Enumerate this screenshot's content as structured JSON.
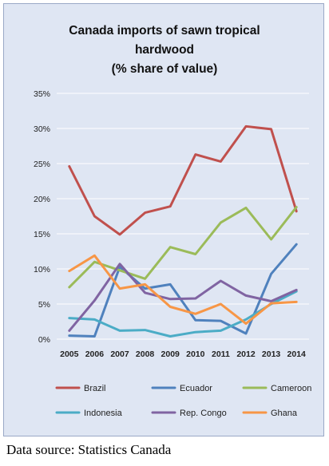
{
  "chart_data": {
    "type": "line",
    "title_lines": [
      "Canada imports of sawn tropical",
      "hardwood",
      "(% share of value)"
    ],
    "x": [
      "2005",
      "2006",
      "2007",
      "2008",
      "2009",
      "2010",
      "2011",
      "2012",
      "2013",
      "2014"
    ],
    "ylim": [
      0,
      35
    ],
    "yticks": [
      "0%",
      "5%",
      "10%",
      "15%",
      "20%",
      "25%",
      "30%",
      "35%"
    ],
    "grid": true,
    "legend_position": "bottom",
    "series": [
      {
        "name": "Brazil",
        "color": "#c0504d",
        "values": [
          24.6,
          17.5,
          14.9,
          18.0,
          18.9,
          26.3,
          25.3,
          30.3,
          29.9,
          18.2
        ]
      },
      {
        "name": "Ecuador",
        "color": "#4f81bd",
        "values": [
          0.5,
          0.4,
          10.3,
          7.2,
          7.8,
          2.7,
          2.6,
          0.8,
          9.3,
          13.5
        ]
      },
      {
        "name": "Cameroon",
        "color": "#9bbb59",
        "values": [
          7.4,
          11.0,
          9.8,
          8.6,
          13.1,
          12.1,
          16.6,
          18.7,
          14.2,
          18.8
        ]
      },
      {
        "name": "Indonesia",
        "color": "#4bacc6",
        "values": [
          3.0,
          2.8,
          1.2,
          1.3,
          0.4,
          1.0,
          1.2,
          2.8,
          5.0,
          6.8
        ]
      },
      {
        "name": "Rep. Congo",
        "color": "#8064a2",
        "values": [
          1.2,
          5.5,
          10.7,
          6.6,
          5.7,
          5.8,
          8.3,
          6.2,
          5.4,
          7.0
        ]
      },
      {
        "name": "Ghana",
        "color": "#f79646",
        "values": [
          9.7,
          11.9,
          7.2,
          7.8,
          4.6,
          3.6,
          5.0,
          2.2,
          5.1,
          5.3
        ]
      }
    ]
  },
  "source": "Data source: Statistics Canada"
}
